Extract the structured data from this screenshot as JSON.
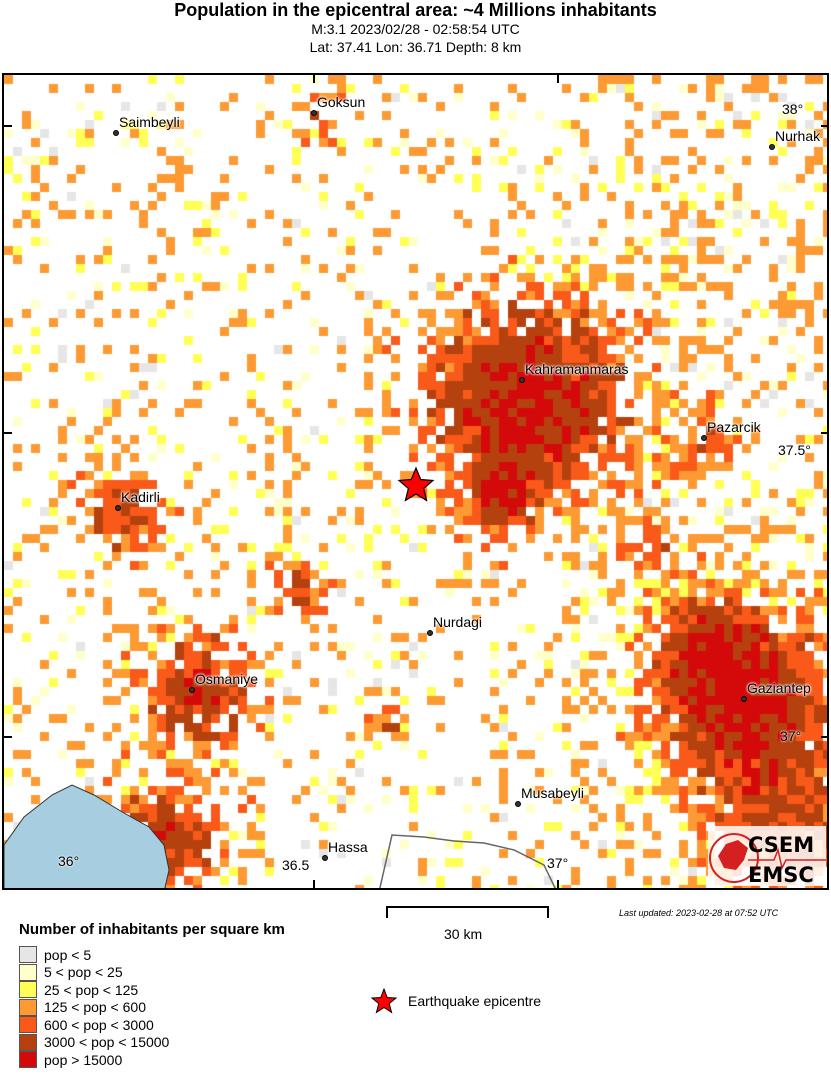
{
  "header": {
    "title": "Population in the epicentral area: ~4 Millions inhabitants",
    "line1": "M:3.1 2023/02/28 - 02:58:54 UTC",
    "line2": "Lat: 37.41 Lon: 36.71 Depth: 8 km"
  },
  "map": {
    "cities": [
      "Goksun",
      "Saimbeyli",
      "Nurhak",
      "Kahramanmaras",
      "Pazarcik",
      "Kadirli",
      "Nurdagi",
      "Osmaniye",
      "Gaziantep",
      "Musabeyli",
      "Hassa"
    ],
    "lat_ticks": [
      "38°",
      "37.5°",
      "37°"
    ],
    "lon_ticks": [
      "36°",
      "36.5",
      "37°"
    ],
    "sea_color": "#a6cde0",
    "epicentre_color": "#ff0000"
  },
  "legend": {
    "title": "Number of inhabitants per square km",
    "items": [
      {
        "label": "pop < 5",
        "color": "#e6e6e6"
      },
      {
        "label": "5 < pop < 25",
        "color": "#ffffcc"
      },
      {
        "label": "25 < pop < 125",
        "color": "#ffff55"
      },
      {
        "label": "125 < pop < 600",
        "color": "#fd9a33"
      },
      {
        "label": "600 < pop < 3000",
        "color": "#f95a1a"
      },
      {
        "label": "3000 < pop < 15000",
        "color": "#b5410e"
      },
      {
        "label": "pop > 15000",
        "color": "#d40a0a"
      }
    ],
    "epicentre_label": "Earthquake epicentre"
  },
  "scale": {
    "label": "30 km"
  },
  "footer": {
    "last_updated": "Last updated: 2023-02-28 at 07:52 UTC"
  },
  "logo": {
    "top": "CSEM",
    "bottom": "EMSC"
  }
}
